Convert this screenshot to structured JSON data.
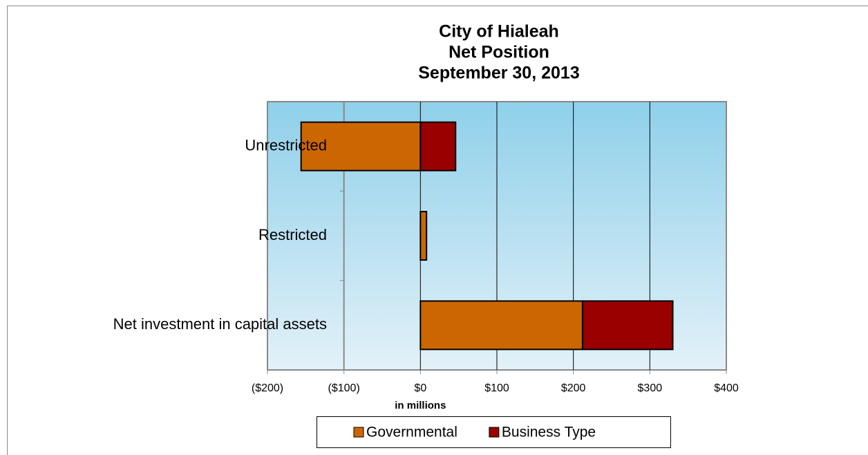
{
  "chart_data": {
    "type": "stacked_barh",
    "title": [
      "City of Hialeah",
      "Net Position",
      "September 30, 2013"
    ],
    "x_label": "in millions",
    "categories": [
      "Unrestricted",
      "Restricted",
      "Net investment in capital assets"
    ],
    "series": [
      {
        "name": "Governmental",
        "color": "#cc6600",
        "values": [
          -156,
          8,
          212
        ]
      },
      {
        "name": "Business Type",
        "color": "#990000",
        "values": [
          46,
          0,
          118
        ]
      }
    ],
    "xlim": [
      -200,
      400
    ],
    "xticks": [
      {
        "value": -200,
        "label": "($200)"
      },
      {
        "value": -100,
        "label": "($100)"
      },
      {
        "value": 0,
        "label": "$0"
      },
      {
        "value": 100,
        "label": "$100"
      },
      {
        "value": 200,
        "label": "$200"
      },
      {
        "value": 300,
        "label": "$300"
      },
      {
        "value": 400,
        "label": "$400"
      }
    ],
    "negative_tick_color": "#ff0000",
    "category_axis_crosses": -100,
    "grid": true,
    "legend": "bottom"
  }
}
